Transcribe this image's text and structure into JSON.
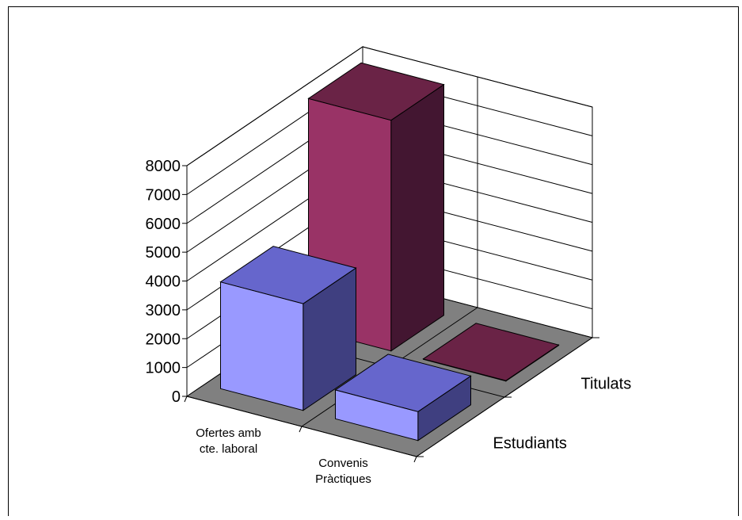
{
  "chart_data": {
    "type": "bar",
    "categories": [
      "Ofertes amb cte. laboral",
      "Convenis Pràctiques"
    ],
    "category_label_lines": [
      [
        "Ofertes amb",
        "cte. laboral"
      ],
      [
        "Convenis",
        "Pràctiques"
      ]
    ],
    "series": [
      {
        "name": "Estudiants",
        "values": [
          3700,
          1000
        ]
      },
      {
        "name": "Titulats",
        "values": [
          8000,
          0
        ]
      }
    ],
    "ylim": [
      0,
      8000
    ],
    "yticks": [
      0,
      1000,
      2000,
      3000,
      4000,
      5000,
      6000,
      7000,
      8000
    ],
    "grid": true,
    "legend": "none",
    "colors": {
      "Estudiants": {
        "front": "#9999ff",
        "top": "#6666cc",
        "side": "#3f3f80"
      },
      "Titulats": {
        "front": "#993366",
        "top": "#6a2346",
        "side": "#431631"
      },
      "floor": "#808080",
      "wall": "#ffffff",
      "axis": "#000000",
      "gridline": "#000000"
    }
  }
}
